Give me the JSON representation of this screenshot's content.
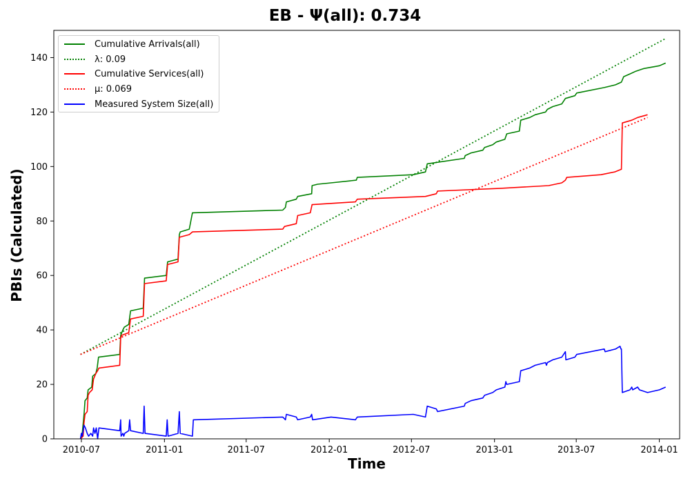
{
  "chart_data": {
    "type": "line",
    "title": "EB -  Ψ(all): 0.734",
    "xlabel": "Time",
    "ylabel": "PBIs (Calculated)",
    "ylim": [
      0,
      150
    ],
    "xlim": [
      "2010-05-01",
      "2014-02-15"
    ],
    "grid": false,
    "legend_position": "upper-left",
    "x_ticks": [
      "2010-07",
      "2011-01",
      "2011-07",
      "2012-01",
      "2012-07",
      "2013-01",
      "2013-07",
      "2014-01"
    ],
    "y_ticks": [
      0,
      20,
      40,
      60,
      80,
      100,
      120,
      140
    ],
    "series": [
      {
        "name": "Cumulative Arrivals(all)",
        "color": "#008000",
        "style": "solid",
        "points": [
          [
            "2010-06-29",
            0
          ],
          [
            "2010-07-03",
            2
          ],
          [
            "2010-07-07",
            9
          ],
          [
            "2010-07-09",
            14
          ],
          [
            "2010-07-14",
            15
          ],
          [
            "2010-07-16",
            18
          ],
          [
            "2010-07-24",
            19
          ],
          [
            "2010-07-26",
            23
          ],
          [
            "2010-08-02",
            24
          ],
          [
            "2010-08-05",
            26
          ],
          [
            "2010-08-08",
            30
          ],
          [
            "2010-09-24",
            31
          ],
          [
            "2010-09-26",
            38
          ],
          [
            "2010-10-01",
            40
          ],
          [
            "2010-10-04",
            41
          ],
          [
            "2010-10-14",
            42
          ],
          [
            "2010-10-18",
            47
          ],
          [
            "2010-11-15",
            48
          ],
          [
            "2010-11-18",
            59
          ],
          [
            "2011-01-05",
            60
          ],
          [
            "2011-01-08",
            65
          ],
          [
            "2011-01-31",
            66
          ],
          [
            "2011-02-03",
            75
          ],
          [
            "2011-02-05",
            76
          ],
          [
            "2011-02-25",
            77
          ],
          [
            "2011-03-04",
            83
          ],
          [
            "2011-09-20",
            84
          ],
          [
            "2011-09-26",
            85
          ],
          [
            "2011-09-28",
            87
          ],
          [
            "2011-10-20",
            88
          ],
          [
            "2011-10-23",
            89
          ],
          [
            "2011-11-23",
            90
          ],
          [
            "2011-11-24",
            93
          ],
          [
            "2011-12-06",
            93.5
          ],
          [
            "2012-01-05",
            94
          ],
          [
            "2012-03-01",
            95
          ],
          [
            "2012-03-03",
            96
          ],
          [
            "2012-07-05",
            97
          ],
          [
            "2012-08-01",
            98
          ],
          [
            "2012-08-05",
            101
          ],
          [
            "2012-10-26",
            103
          ],
          [
            "2012-10-28",
            104
          ],
          [
            "2012-11-10",
            105
          ],
          [
            "2012-12-06",
            106
          ],
          [
            "2012-12-10",
            107
          ],
          [
            "2012-12-28",
            108
          ],
          [
            "2013-01-05",
            109
          ],
          [
            "2013-01-24",
            110
          ],
          [
            "2013-01-28",
            112
          ],
          [
            "2013-02-25",
            113
          ],
          [
            "2013-02-28",
            117
          ],
          [
            "2013-03-20",
            118
          ],
          [
            "2013-04-01",
            119
          ],
          [
            "2013-04-24",
            120
          ],
          [
            "2013-04-28",
            121
          ],
          [
            "2013-05-10",
            122
          ],
          [
            "2013-05-30",
            123
          ],
          [
            "2013-06-07",
            125
          ],
          [
            "2013-06-28",
            126
          ],
          [
            "2013-07-02",
            127
          ],
          [
            "2013-09-01",
            129
          ],
          [
            "2013-09-26",
            130
          ],
          [
            "2013-10-09",
            131
          ],
          [
            "2013-10-14",
            133
          ],
          [
            "2013-10-28",
            134
          ],
          [
            "2013-11-10",
            135
          ],
          [
            "2013-11-28",
            136
          ],
          [
            "2014-01-01",
            137
          ],
          [
            "2014-01-15",
            138
          ]
        ]
      },
      {
        "name": "λ: 0.09",
        "color": "#008000",
        "style": "dotted",
        "points": [
          [
            "2010-06-29",
            31
          ],
          [
            "2014-01-15",
            147
          ]
        ]
      },
      {
        "name": "Cumulative Services(all)",
        "color": "#ff0000",
        "style": "solid",
        "points": [
          [
            "2010-06-29",
            0
          ],
          [
            "2010-07-05",
            1
          ],
          [
            "2010-07-07",
            6
          ],
          [
            "2010-07-09",
            9
          ],
          [
            "2010-07-14",
            10
          ],
          [
            "2010-07-16",
            16
          ],
          [
            "2010-07-19",
            17
          ],
          [
            "2010-07-25",
            18
          ],
          [
            "2010-07-28",
            22
          ],
          [
            "2010-08-02",
            24
          ],
          [
            "2010-08-06",
            25
          ],
          [
            "2010-08-09",
            26
          ],
          [
            "2010-09-24",
            27
          ],
          [
            "2010-09-26",
            37
          ],
          [
            "2010-09-28",
            38
          ],
          [
            "2010-10-14",
            39
          ],
          [
            "2010-10-18",
            44
          ],
          [
            "2010-11-15",
            45
          ],
          [
            "2010-11-18",
            57
          ],
          [
            "2011-01-05",
            58
          ],
          [
            "2011-01-08",
            64
          ],
          [
            "2011-01-31",
            65
          ],
          [
            "2011-02-03",
            74
          ],
          [
            "2011-02-25",
            75
          ],
          [
            "2011-03-04",
            76
          ],
          [
            "2011-09-20",
            77
          ],
          [
            "2011-09-24",
            78
          ],
          [
            "2011-10-20",
            79
          ],
          [
            "2011-10-23",
            82
          ],
          [
            "2011-11-20",
            83
          ],
          [
            "2011-11-24",
            86
          ],
          [
            "2012-02-28",
            87
          ],
          [
            "2012-03-03",
            88
          ],
          [
            "2012-08-01",
            89
          ],
          [
            "2012-08-25",
            90
          ],
          [
            "2012-08-28",
            91
          ],
          [
            "2013-01-15",
            92
          ],
          [
            "2013-05-01",
            93
          ],
          [
            "2013-05-30",
            94
          ],
          [
            "2013-06-07",
            95
          ],
          [
            "2013-06-10",
            96
          ],
          [
            "2013-08-25",
            97
          ],
          [
            "2013-09-24",
            98
          ],
          [
            "2013-10-09",
            99
          ],
          [
            "2013-10-11",
            116
          ],
          [
            "2013-11-01",
            117
          ],
          [
            "2013-11-14",
            118
          ],
          [
            "2013-12-06",
            119
          ]
        ]
      },
      {
        "name": "μ: 0.069",
        "color": "#ff0000",
        "style": "dotted",
        "points": [
          [
            "2010-06-29",
            31
          ],
          [
            "2013-12-06",
            118
          ]
        ]
      },
      {
        "name": "Measured System Size(all)",
        "color": "#0000ff",
        "style": "solid",
        "points": [
          [
            "2010-06-29",
            0
          ],
          [
            "2010-07-01",
            2
          ],
          [
            "2010-07-03",
            1
          ],
          [
            "2010-07-05",
            3
          ],
          [
            "2010-07-07",
            5
          ],
          [
            "2010-07-10",
            4
          ],
          [
            "2010-07-14",
            2
          ],
          [
            "2010-07-17",
            1
          ],
          [
            "2010-07-22",
            2
          ],
          [
            "2010-07-26",
            1
          ],
          [
            "2010-07-28",
            4
          ],
          [
            "2010-07-31",
            2
          ],
          [
            "2010-08-03",
            4
          ],
          [
            "2010-08-06",
            0
          ],
          [
            "2010-08-09",
            4
          ],
          [
            "2010-09-24",
            3
          ],
          [
            "2010-09-26",
            7
          ],
          [
            "2010-09-27",
            1
          ],
          [
            "2010-10-01",
            2
          ],
          [
            "2010-10-03",
            1
          ],
          [
            "2010-10-05",
            2
          ],
          [
            "2010-10-14",
            3
          ],
          [
            "2010-10-16",
            7
          ],
          [
            "2010-10-18",
            3
          ],
          [
            "2010-11-15",
            2
          ],
          [
            "2010-11-17",
            12
          ],
          [
            "2010-11-19",
            2
          ],
          [
            "2011-01-05",
            1
          ],
          [
            "2011-01-07",
            7
          ],
          [
            "2011-01-09",
            1
          ],
          [
            "2011-01-31",
            2
          ],
          [
            "2011-02-03",
            10
          ],
          [
            "2011-02-05",
            2
          ],
          [
            "2011-03-04",
            1
          ],
          [
            "2011-03-06",
            7
          ],
          [
            "2011-09-20",
            8
          ],
          [
            "2011-09-26",
            7
          ],
          [
            "2011-09-28",
            9
          ],
          [
            "2011-10-20",
            8
          ],
          [
            "2011-10-23",
            7
          ],
          [
            "2011-11-20",
            8
          ],
          [
            "2011-11-23",
            9
          ],
          [
            "2011-11-25",
            7
          ],
          [
            "2012-01-05",
            8
          ],
          [
            "2012-02-28",
            7
          ],
          [
            "2012-03-03",
            8
          ],
          [
            "2012-07-05",
            9
          ],
          [
            "2012-08-01",
            8
          ],
          [
            "2012-08-05",
            12
          ],
          [
            "2012-08-25",
            11
          ],
          [
            "2012-08-28",
            10
          ],
          [
            "2012-10-26",
            12
          ],
          [
            "2012-10-28",
            13
          ],
          [
            "2012-11-10",
            14
          ],
          [
            "2012-12-06",
            15
          ],
          [
            "2012-12-10",
            16
          ],
          [
            "2012-12-28",
            17
          ],
          [
            "2013-01-05",
            18
          ],
          [
            "2013-01-24",
            19
          ],
          [
            "2013-01-26",
            21
          ],
          [
            "2013-01-28",
            20
          ],
          [
            "2013-02-25",
            21
          ],
          [
            "2013-02-28",
            25
          ],
          [
            "2013-03-20",
            26
          ],
          [
            "2013-04-01",
            27
          ],
          [
            "2013-04-24",
            28
          ],
          [
            "2013-04-26",
            27
          ],
          [
            "2013-04-28",
            28
          ],
          [
            "2013-05-10",
            29
          ],
          [
            "2013-05-30",
            30
          ],
          [
            "2013-06-07",
            32
          ],
          [
            "2013-06-08",
            29
          ],
          [
            "2013-06-28",
            30
          ],
          [
            "2013-07-02",
            31
          ],
          [
            "2013-09-01",
            33
          ],
          [
            "2013-09-03",
            32
          ],
          [
            "2013-09-26",
            33
          ],
          [
            "2013-10-06",
            34
          ],
          [
            "2013-10-08",
            33
          ],
          [
            "2013-10-09",
            33
          ],
          [
            "2013-10-11",
            17
          ],
          [
            "2013-10-28",
            18
          ],
          [
            "2013-11-01",
            19
          ],
          [
            "2013-11-03",
            18
          ],
          [
            "2013-11-14",
            19
          ],
          [
            "2013-11-18",
            18
          ],
          [
            "2013-12-06",
            17
          ],
          [
            "2014-01-01",
            18
          ],
          [
            "2014-01-15",
            19
          ]
        ]
      }
    ]
  }
}
